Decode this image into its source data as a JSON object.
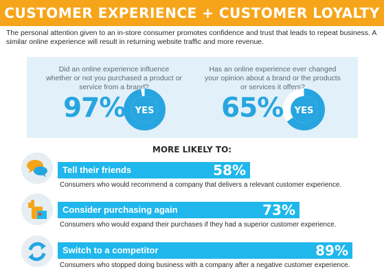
{
  "header": {
    "title": "CUSTOMER EXPERIENCE + CUSTOMER LOYALTY",
    "color": "#f6a51a"
  },
  "intro": "The personal attention given to an in-store consumer promotes confidence and trust that leads to repeat business. A similar online experience will result in returning website traffic and more revenue.",
  "stats": [
    {
      "question": "Did an online experience influence whether or not you purchased a product or service from a brand?",
      "percent_label": "97%",
      "percent": 97,
      "answer": "YES"
    },
    {
      "question": "Has an online experience ever changed your opinion about a brand or the products or services it offers?",
      "percent_label": "65%",
      "percent": 65,
      "answer": "YES"
    }
  ],
  "more_likely": {
    "heading": "MORE LIKELY TO:",
    "items": [
      {
        "label": "Tell their friends",
        "percent_label": "58%",
        "percent": 58,
        "icon": "speech-bubbles-icon",
        "description": "Consumers who would recommend a company that delivers a relevant customer experience."
      },
      {
        "label": "Consider purchasing again",
        "percent_label": "73%",
        "percent": 73,
        "icon": "thumbs-up-icon",
        "description": "Consumers who would expand their purchases if they had a superior customer experience."
      },
      {
        "label": "Switch to a competitor",
        "percent_label": "89%",
        "percent": 89,
        "icon": "switch-arrows-icon",
        "description": "Consumers who stopped doing business with a company after a negative customer experience."
      }
    ]
  },
  "colors": {
    "accent_blue": "#1fb7ec",
    "panel_bg": "#e2f0f9",
    "orange": "#f6a51a"
  }
}
